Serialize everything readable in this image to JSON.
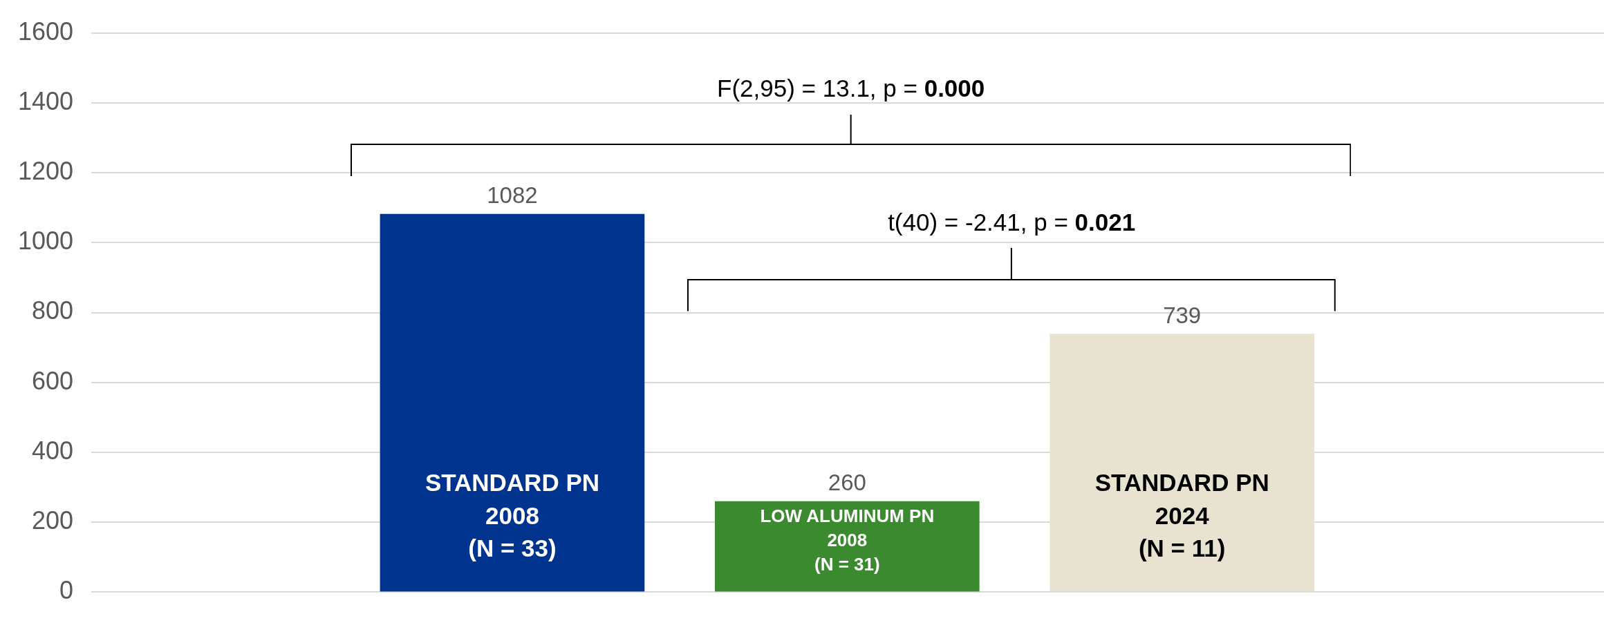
{
  "chart_data": {
    "type": "bar",
    "categories": [
      "STANDARD PN\n2008\n(N = 33)",
      "LOW ALUMINUM PN\n2008\n(N = 31)",
      "STANDARD PN\n2024\n(N = 11)"
    ],
    "values": [
      1082,
      260,
      739
    ],
    "colors": [
      "#00338d",
      "#3b8a30",
      "#e8e3d1"
    ],
    "ylim": [
      0,
      1600
    ],
    "yticks": [
      0,
      200,
      400,
      600,
      800,
      1000,
      1200,
      1400,
      1600
    ],
    "grid": "y",
    "tick_labels": "y",
    "data_labels": true,
    "legend": false,
    "annotations": [
      "F(2,95) = 13.1, p = 0.000",
      "t(40) = -2.41, p = 0.021"
    ]
  }
}
